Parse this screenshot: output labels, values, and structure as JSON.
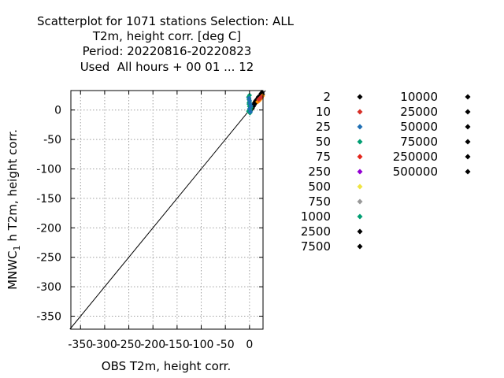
{
  "chart_data": {
    "type": "scatter",
    "title_lines": [
      "Scatterplot for 1071 stations Selection: ALL",
      "T2m, height corr. [deg C]",
      "Period: 20220816-20220823",
      "Used  All hours + 00 01 ... 12"
    ],
    "xlabel": "OBS T2m, height corr.",
    "ylabel_parts": [
      "MNWC",
      "1",
      " h T2m, height corr."
    ],
    "xlim": [
      -370,
      28
    ],
    "ylim": [
      -372,
      33
    ],
    "x_ticks": [
      -350,
      -300,
      -250,
      -200,
      -150,
      -100,
      -50,
      0
    ],
    "x_tick_labels": [
      "-350",
      "-300",
      "-250",
      "-200",
      "-150",
      "-100",
      "-50",
      "0"
    ],
    "y_ticks": [
      0,
      -50,
      -100,
      -150,
      -200,
      -250,
      -300,
      -350
    ],
    "y_tick_labels": [
      "0",
      "-50",
      "-100",
      "-150",
      "-200",
      "-250",
      "-300",
      "-350"
    ],
    "grid": true,
    "diagonal": {
      "from": -372,
      "to": 33
    },
    "legend_columns": [
      [
        {
          "label": "2",
          "color": "#000000"
        },
        {
          "label": "10",
          "color": "#d73027"
        },
        {
          "label": "25",
          "color": "#1f6fb4"
        },
        {
          "label": "50",
          "color": "#009e73"
        },
        {
          "label": "75",
          "color": "#e4261c"
        },
        {
          "label": "250",
          "color": "#9400d3"
        },
        {
          "label": "500",
          "color": "#f0e442"
        },
        {
          "label": "750",
          "color": "#999999"
        },
        {
          "label": "1000",
          "color": "#009e73"
        },
        {
          "label": "2500",
          "color": "#000000"
        },
        {
          "label": "7500",
          "color": "#000000"
        }
      ],
      [
        {
          "label": "10000",
          "color": "#000000"
        },
        {
          "label": "25000",
          "color": "#000000"
        },
        {
          "label": "50000",
          "color": "#000000"
        },
        {
          "label": "75000",
          "color": "#000000"
        },
        {
          "label": "250000",
          "color": "#000000"
        },
        {
          "label": "500000",
          "color": "#000000"
        }
      ]
    ],
    "series": [
      {
        "color": "#000000",
        "points": [
          [
            0,
            0
          ],
          [
            1,
            2
          ],
          [
            2,
            1
          ],
          [
            3,
            3
          ],
          [
            4,
            4
          ],
          [
            5,
            6
          ],
          [
            6,
            5
          ],
          [
            7,
            7
          ],
          [
            8,
            8
          ],
          [
            9,
            10
          ],
          [
            10,
            9
          ],
          [
            11,
            11
          ],
          [
            12,
            12
          ],
          [
            13,
            14
          ],
          [
            14,
            13
          ],
          [
            15,
            15
          ],
          [
            16,
            17
          ],
          [
            17,
            16
          ],
          [
            18,
            18
          ],
          [
            19,
            20
          ],
          [
            20,
            19
          ],
          [
            21,
            22
          ],
          [
            22,
            21
          ],
          [
            23,
            24
          ],
          [
            24,
            23
          ],
          [
            25,
            26
          ],
          [
            26,
            25
          ],
          [
            27,
            27
          ],
          [
            2,
            -1
          ],
          [
            4,
            1
          ],
          [
            6,
            3
          ],
          [
            8,
            6
          ],
          [
            10,
            12
          ],
          [
            12,
            15
          ],
          [
            14,
            17
          ],
          [
            16,
            19
          ],
          [
            18,
            22
          ],
          [
            20,
            23
          ],
          [
            22,
            25
          ],
          [
            24,
            28
          ],
          [
            26,
            30
          ]
        ]
      },
      {
        "color": "#009e73",
        "points": [
          [
            -2,
            22
          ],
          [
            -1,
            18
          ],
          [
            0,
            14
          ],
          [
            -1,
            10
          ],
          [
            0,
            6
          ],
          [
            1,
            3
          ],
          [
            -2,
            -2
          ],
          [
            0,
            -4
          ],
          [
            1,
            -5
          ],
          [
            2,
            0
          ],
          [
            3,
            4
          ],
          [
            0,
            25
          ],
          [
            -1,
            12
          ],
          [
            1,
            8
          ]
        ]
      },
      {
        "color": "#1f6fb4",
        "points": [
          [
            -1,
            20
          ],
          [
            0,
            16
          ],
          [
            1,
            11
          ],
          [
            0,
            2
          ],
          [
            2,
            -3
          ],
          [
            3,
            7
          ]
        ]
      },
      {
        "color": "#ff8c00",
        "points": [
          [
            17,
            14
          ],
          [
            20,
            16
          ],
          [
            23,
            19
          ],
          [
            25,
            21
          ],
          [
            27,
            24
          ]
        ]
      },
      {
        "color": "#d73027",
        "points": [
          [
            19,
            18
          ],
          [
            22,
            20
          ],
          [
            24,
            22
          ]
        ]
      }
    ]
  }
}
